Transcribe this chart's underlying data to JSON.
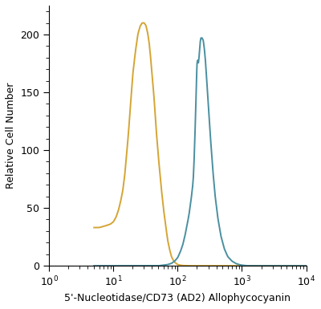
{
  "xlabel": "5'-Nucleotidase/CD73 (AD2) Allophycocyanin",
  "ylabel": "Relative Cell Number",
  "xlim": [
    5,
    10000
  ],
  "ylim": [
    0,
    225
  ],
  "yticks": [
    0,
    50,
    100,
    150,
    200
  ],
  "orange_color": "#D4A535",
  "blue_color": "#4A8FA0",
  "background_color": "#ffffff",
  "linewidth": 1.4,
  "orange_curve": {
    "segments": [
      [
        5,
        33
      ],
      [
        6,
        33
      ],
      [
        7,
        34
      ],
      [
        8,
        35
      ],
      [
        9,
        36
      ],
      [
        10,
        38
      ],
      [
        11,
        42
      ],
      [
        12,
        48
      ],
      [
        13,
        56
      ],
      [
        14,
        65
      ],
      [
        15,
        78
      ],
      [
        16,
        95
      ],
      [
        17,
        112
      ],
      [
        18,
        130
      ],
      [
        19,
        148
      ],
      [
        20,
        165
      ],
      [
        22,
        185
      ],
      [
        24,
        200
      ],
      [
        26,
        207
      ],
      [
        28,
        210
      ],
      [
        30,
        210
      ],
      [
        32,
        208
      ],
      [
        34,
        202
      ],
      [
        36,
        193
      ],
      [
        38,
        180
      ],
      [
        40,
        165
      ],
      [
        43,
        145
      ],
      [
        46,
        120
      ],
      [
        50,
        95
      ],
      [
        55,
        70
      ],
      [
        60,
        50
      ],
      [
        65,
        35
      ],
      [
        70,
        22
      ],
      [
        75,
        14
      ],
      [
        80,
        8
      ],
      [
        85,
        5
      ],
      [
        90,
        3
      ],
      [
        95,
        2
      ],
      [
        100,
        1
      ],
      [
        110,
        0.5
      ],
      [
        120,
        0.2
      ],
      [
        150,
        0
      ],
      [
        10000,
        0
      ]
    ]
  },
  "blue_curve": {
    "segments": [
      [
        5,
        0
      ],
      [
        50,
        0
      ],
      [
        60,
        0.5
      ],
      [
        70,
        1
      ],
      [
        80,
        2
      ],
      [
        90,
        4
      ],
      [
        100,
        7
      ],
      [
        110,
        12
      ],
      [
        120,
        18
      ],
      [
        130,
        26
      ],
      [
        140,
        35
      ],
      [
        150,
        44
      ],
      [
        160,
        55
      ],
      [
        170,
        67
      ],
      [
        175,
        75
      ],
      [
        180,
        90
      ],
      [
        185,
        110
      ],
      [
        190,
        130
      ],
      [
        195,
        155
      ],
      [
        200,
        175
      ],
      [
        205,
        178
      ],
      [
        210,
        175
      ],
      [
        215,
        180
      ],
      [
        220,
        188
      ],
      [
        225,
        194
      ],
      [
        230,
        197
      ],
      [
        240,
        197
      ],
      [
        250,
        195
      ],
      [
        260,
        188
      ],
      [
        270,
        178
      ],
      [
        280,
        165
      ],
      [
        300,
        140
      ],
      [
        320,
        115
      ],
      [
        350,
        85
      ],
      [
        380,
        62
      ],
      [
        420,
        42
      ],
      [
        470,
        26
      ],
      [
        530,
        15
      ],
      [
        600,
        8
      ],
      [
        700,
        4
      ],
      [
        800,
        2
      ],
      [
        900,
        1
      ],
      [
        1000,
        0.5
      ],
      [
        1200,
        0
      ],
      [
        10000,
        0
      ]
    ]
  }
}
